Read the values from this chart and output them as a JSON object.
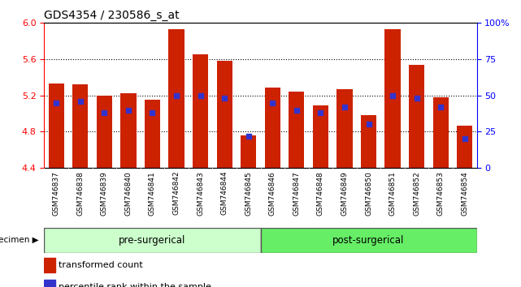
{
  "title": "GDS4354 / 230586_s_at",
  "samples": [
    "GSM746837",
    "GSM746838",
    "GSM746839",
    "GSM746840",
    "GSM746841",
    "GSM746842",
    "GSM746843",
    "GSM746844",
    "GSM746845",
    "GSM746846",
    "GSM746847",
    "GSM746848",
    "GSM746849",
    "GSM746850",
    "GSM746851",
    "GSM746852",
    "GSM746853",
    "GSM746854"
  ],
  "red_values": [
    5.33,
    5.32,
    5.2,
    5.22,
    5.15,
    5.93,
    5.65,
    5.58,
    4.76,
    5.29,
    5.24,
    5.09,
    5.27,
    4.98,
    5.93,
    5.54,
    5.18,
    4.87
  ],
  "blue_pct": [
    45,
    46,
    38,
    40,
    38,
    50,
    50,
    48,
    22,
    45,
    40,
    38,
    42,
    30,
    50,
    48,
    42,
    20
  ],
  "ylim_left": [
    4.4,
    6.0
  ],
  "ylim_right": [
    0,
    100
  ],
  "yticks_left": [
    4.4,
    4.8,
    5.2,
    5.6,
    6.0
  ],
  "yticks_right_vals": [
    0,
    25,
    50,
    75,
    100
  ],
  "bar_color": "#cc2200",
  "blue_color": "#3333cc",
  "pre_surgical_count": 9,
  "post_surgical_count": 9,
  "group_labels": [
    "pre-surgerical",
    "post-surgerical"
  ],
  "pre_color": "#ccffcc",
  "post_color": "#66ee66",
  "legend_items": [
    "transformed count",
    "percentile rank within the sample"
  ],
  "specimen_label": "specimen",
  "tick_bg_color": "#cccccc",
  "dotted_lines": [
    4.8,
    5.2,
    5.6
  ],
  "bar_bottom": 4.4
}
